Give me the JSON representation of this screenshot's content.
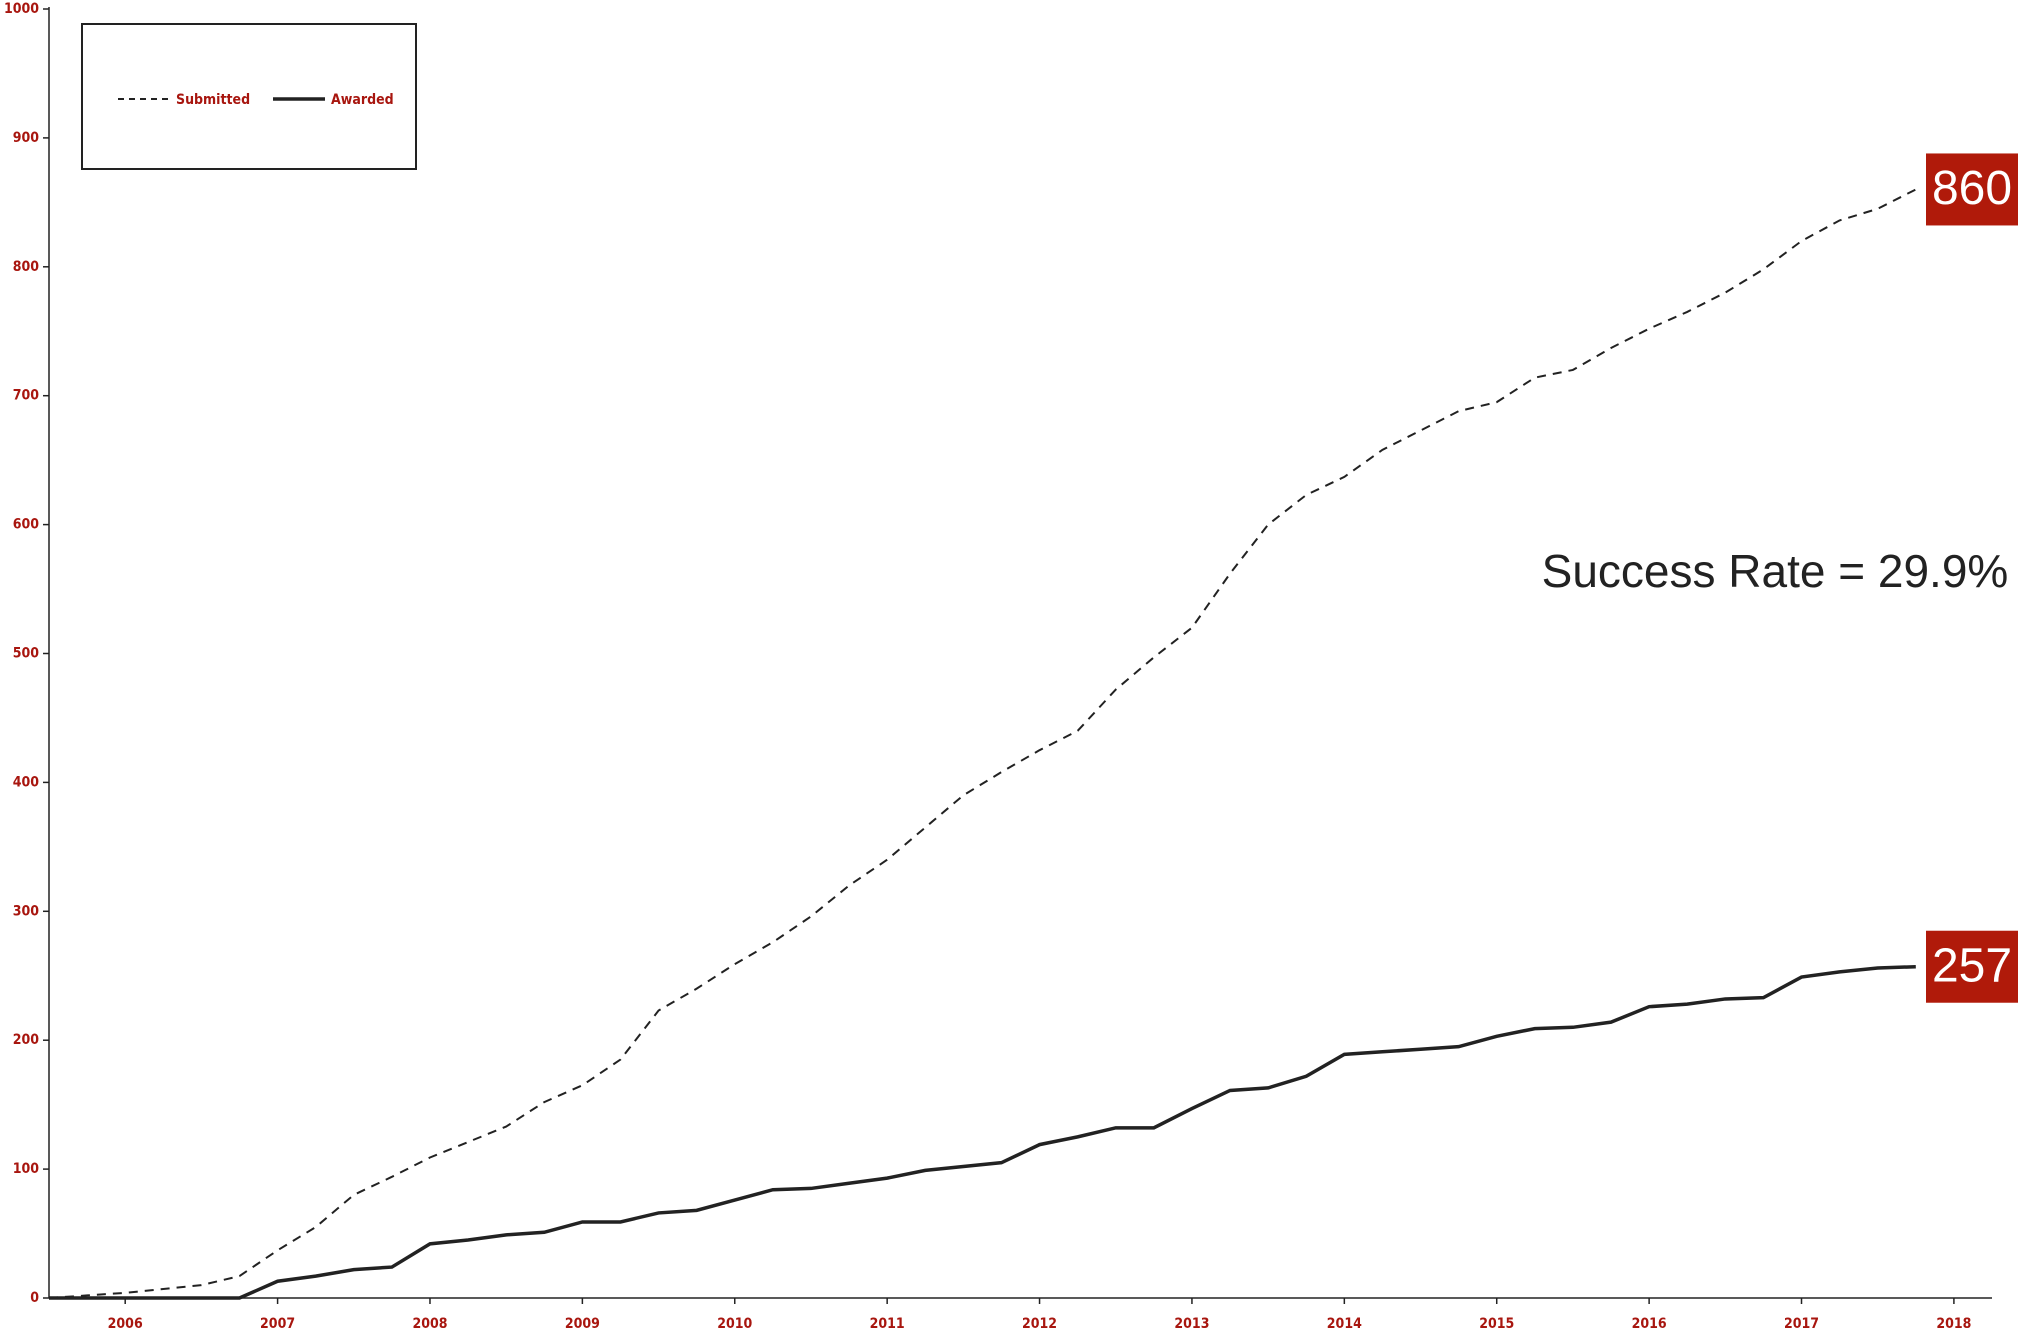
{
  "chart_data": {
    "type": "line",
    "x": [
      2006,
      2006.25,
      2006.5,
      2006.75,
      2007,
      2007.25,
      2007.5,
      2007.75,
      2008,
      2008.25,
      2008.5,
      2008.75,
      2009,
      2009.25,
      2009.5,
      2009.75,
      2010,
      2010.25,
      2010.5,
      2010.75,
      2011,
      2011.25,
      2011.5,
      2011.75,
      2012,
      2012.25,
      2012.5,
      2012.75,
      2013,
      2013.25,
      2013.5,
      2013.75,
      2014,
      2014.25,
      2014.5,
      2014.75,
      2015,
      2015.25,
      2015.5,
      2015.75,
      2016,
      2016.25,
      2016.5,
      2016.75,
      2017,
      2017.25,
      2017.5,
      2017.75,
      2018,
      2018.25
    ],
    "series": [
      {
        "name": "Submitted",
        "color": "#222222",
        "dashed": true,
        "values": [
          0,
          2,
          4,
          7,
          10,
          17,
          37,
          55,
          80,
          94,
          109,
          121,
          133,
          152,
          165,
          185,
          223,
          240,
          259,
          276,
          296,
          320,
          340,
          365,
          390,
          408,
          425,
          440,
          472,
          497,
          520,
          562,
          600,
          623,
          637,
          658,
          673,
          688,
          695,
          714,
          720,
          737,
          752,
          765,
          780,
          798,
          820,
          836,
          845,
          860
        ]
      },
      {
        "name": "Awarded",
        "color": "#222222",
        "dashed": false,
        "values": [
          0,
          0,
          0,
          0,
          0,
          0,
          13,
          17,
          22,
          24,
          42,
          45,
          49,
          51,
          59,
          59,
          66,
          68,
          76,
          84,
          85,
          89,
          93,
          99,
          102,
          105,
          119,
          125,
          132,
          132,
          147,
          161,
          163,
          172,
          189,
          191,
          193,
          195,
          203,
          209,
          210,
          214,
          226,
          228,
          232,
          233,
          249,
          253,
          256,
          257
        ]
      }
    ],
    "xlim": [
      2006,
      2018.75
    ],
    "xticks": [
      {
        "value": 2006.5,
        "label": "2006"
      },
      {
        "value": 2007.5,
        "label": "2007"
      },
      {
        "value": 2008.5,
        "label": "2008"
      },
      {
        "value": 2009.5,
        "label": "2009"
      },
      {
        "value": 2010.5,
        "label": "2010"
      },
      {
        "value": 2011.5,
        "label": "2011"
      },
      {
        "value": 2012.5,
        "label": "2012"
      },
      {
        "value": 2013.5,
        "label": "2013"
      },
      {
        "value": 2014.5,
        "label": "2014"
      },
      {
        "value": 2015.5,
        "label": "2015"
      },
      {
        "value": 2016.5,
        "label": "2016"
      },
      {
        "value": 2017.5,
        "label": "2017"
      },
      {
        "value": 2018.5,
        "label": "2018"
      }
    ],
    "ylim": [
      0,
      1000
    ],
    "yticks": [
      0,
      100,
      200,
      300,
      400,
      500,
      600,
      700,
      800,
      900,
      1000
    ],
    "annotation": "Success Rate = 29.9%",
    "label_color": "#a8160f",
    "box_color": "#b01a0a"
  }
}
